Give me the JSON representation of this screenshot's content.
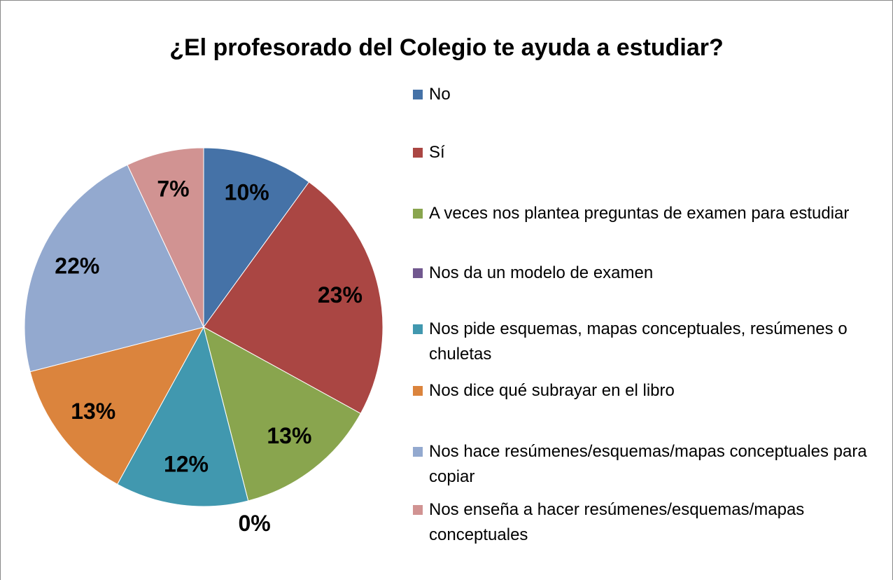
{
  "chart_data": {
    "type": "pie",
    "title": "¿El profesorado del Colegio te ayuda a estudiar?",
    "categories": [
      "No",
      "Sí",
      "A veces nos plantea preguntas de examen para estudiar",
      "Nos da un modelo de examen",
      "Nos pide esquemas, mapas conceptuales, resúmenes o chuletas",
      "Nos dice qué subrayar en el libro",
      "Nos hace resúmenes/esquemas/mapas conceptuales para copiar",
      "Nos enseña a hacer resúmenes/esquemas/mapas conceptuales"
    ],
    "values": [
      10,
      23,
      13,
      0,
      12,
      13,
      22,
      7
    ],
    "value_labels": [
      "10%",
      "23%",
      "13%",
      "0%",
      "12%",
      "13%",
      "22%",
      "7%"
    ],
    "colors": [
      "#4572a7",
      "#aa4643",
      "#89a54e",
      "#71588f",
      "#4198af",
      "#db843d",
      "#93a9cf",
      "#d19392"
    ],
    "legend": "right"
  }
}
